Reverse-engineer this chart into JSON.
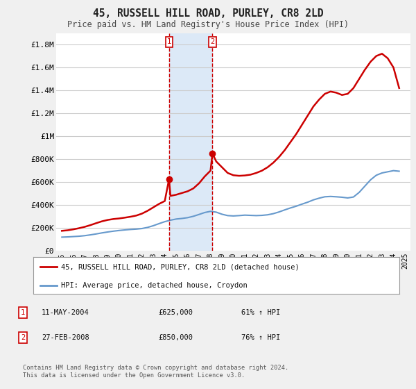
{
  "title": "45, RUSSELL HILL ROAD, PURLEY, CR8 2LD",
  "subtitle": "Price paid vs. HM Land Registry's House Price Index (HPI)",
  "ylabel_ticks": [
    "£0",
    "£200K",
    "£400K",
    "£600K",
    "£800K",
    "£1M",
    "£1.2M",
    "£1.4M",
    "£1.6M",
    "£1.8M"
  ],
  "ytick_values": [
    0,
    200000,
    400000,
    600000,
    800000,
    1000000,
    1200000,
    1400000,
    1600000,
    1800000
  ],
  "ylim": [
    0,
    1900000
  ],
  "xlim_start": 1994.5,
  "xlim_end": 2025.5,
  "xtick_years": [
    1995,
    1996,
    1997,
    1998,
    1999,
    2000,
    2001,
    2002,
    2003,
    2004,
    2005,
    2006,
    2007,
    2008,
    2009,
    2010,
    2011,
    2012,
    2013,
    2014,
    2015,
    2016,
    2017,
    2018,
    2019,
    2020,
    2021,
    2022,
    2023,
    2024,
    2025
  ],
  "hpi_x": [
    1995.0,
    1995.5,
    1996.0,
    1996.5,
    1997.0,
    1997.5,
    1998.0,
    1998.5,
    1999.0,
    1999.5,
    2000.0,
    2000.5,
    2001.0,
    2001.5,
    2002.0,
    2002.5,
    2003.0,
    2003.5,
    2004.0,
    2004.5,
    2005.0,
    2005.5,
    2006.0,
    2006.5,
    2007.0,
    2007.5,
    2008.0,
    2008.5,
    2009.0,
    2009.5,
    2010.0,
    2010.5,
    2011.0,
    2011.5,
    2012.0,
    2012.5,
    2013.0,
    2013.5,
    2014.0,
    2014.5,
    2015.0,
    2015.5,
    2016.0,
    2016.5,
    2017.0,
    2017.5,
    2018.0,
    2018.5,
    2019.0,
    2019.5,
    2020.0,
    2020.5,
    2021.0,
    2021.5,
    2022.0,
    2022.5,
    2023.0,
    2023.5,
    2024.0,
    2024.5
  ],
  "hpi_y": [
    120000,
    122000,
    125000,
    128000,
    133000,
    140000,
    148000,
    157000,
    165000,
    172000,
    178000,
    183000,
    187000,
    190000,
    195000,
    205000,
    220000,
    238000,
    255000,
    268000,
    278000,
    283000,
    290000,
    302000,
    318000,
    335000,
    345000,
    338000,
    320000,
    308000,
    305000,
    308000,
    312000,
    310000,
    308000,
    310000,
    315000,
    325000,
    340000,
    358000,
    375000,
    390000,
    408000,
    425000,
    445000,
    460000,
    472000,
    475000,
    472000,
    468000,
    462000,
    470000,
    510000,
    565000,
    620000,
    660000,
    680000,
    690000,
    700000,
    695000
  ],
  "price_x": [
    1995.0,
    1995.5,
    1996.0,
    1996.5,
    1997.0,
    1997.5,
    1998.0,
    1998.5,
    1999.0,
    1999.5,
    2000.0,
    2000.5,
    2001.0,
    2001.5,
    2002.0,
    2002.5,
    2003.0,
    2003.5,
    2004.0,
    2004.37,
    2004.5,
    2005.0,
    2005.5,
    2006.0,
    2006.5,
    2007.0,
    2007.5,
    2008.0,
    2008.17,
    2008.5,
    2009.0,
    2009.5,
    2010.0,
    2010.5,
    2011.0,
    2011.5,
    2012.0,
    2012.5,
    2013.0,
    2013.5,
    2014.0,
    2014.5,
    2015.0,
    2015.5,
    2016.0,
    2016.5,
    2017.0,
    2017.5,
    2018.0,
    2018.5,
    2019.0,
    2019.5,
    2020.0,
    2020.5,
    2021.0,
    2021.5,
    2022.0,
    2022.5,
    2023.0,
    2023.5,
    2024.0,
    2024.5
  ],
  "price_y": [
    175000,
    180000,
    188000,
    198000,
    210000,
    225000,
    242000,
    258000,
    270000,
    278000,
    283000,
    290000,
    298000,
    308000,
    325000,
    350000,
    380000,
    410000,
    435000,
    625000,
    480000,
    490000,
    505000,
    520000,
    545000,
    590000,
    650000,
    700000,
    850000,
    780000,
    730000,
    680000,
    660000,
    655000,
    658000,
    665000,
    680000,
    700000,
    730000,
    770000,
    820000,
    880000,
    950000,
    1020000,
    1100000,
    1180000,
    1260000,
    1320000,
    1370000,
    1390000,
    1380000,
    1360000,
    1370000,
    1420000,
    1500000,
    1580000,
    1650000,
    1700000,
    1720000,
    1680000,
    1600000,
    1420000
  ],
  "sale1_x": 2004.37,
  "sale1_y": 625000,
  "sale2_x": 2008.17,
  "sale2_y": 850000,
  "vline1_x": 2004.37,
  "vline2_x": 2008.17,
  "shade_color": "#dce9f7",
  "price_color": "#cc0000",
  "hpi_color": "#6699cc",
  "legend_label_price": "45, RUSSELL HILL ROAD, PURLEY, CR8 2LD (detached house)",
  "legend_label_hpi": "HPI: Average price, detached house, Croydon",
  "table_rows": [
    [
      "1",
      "11-MAY-2004",
      "£625,000",
      "61% ↑ HPI"
    ],
    [
      "2",
      "27-FEB-2008",
      "£850,000",
      "76% ↑ HPI"
    ]
  ],
  "footer_text": "Contains HM Land Registry data © Crown copyright and database right 2024.\nThis data is licensed under the Open Government Licence v3.0.",
  "bg_color": "#f0f0f0",
  "plot_bg_color": "#ffffff"
}
